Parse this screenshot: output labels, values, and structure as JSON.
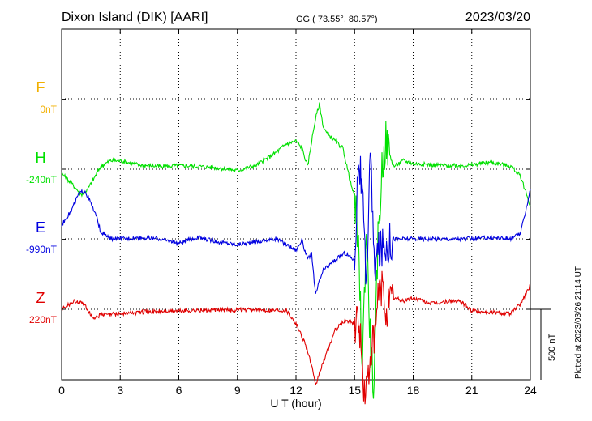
{
  "header": {
    "station": "Dixon Island (DIK)  [AARI]",
    "coords": "GG ( 73.55°,  80.57°)",
    "date": "2023/03/20"
  },
  "footer": {
    "plotted": "Plotted at 2023/03/26 21:14 UT",
    "scale_label": "500 nT"
  },
  "colors": {
    "F": "#f2b000",
    "H": "#00e000",
    "E": "#0000e0",
    "Z": "#e00000"
  },
  "chart_data": {
    "type": "line",
    "title": "Dixon Island (DIK)  [AARI]",
    "xlabel": "U T (hour)",
    "ylabel": "",
    "xlim": [
      0,
      24
    ],
    "x_ticks": [
      0,
      3,
      6,
      9,
      12,
      15,
      18,
      21,
      24
    ],
    "grid": true,
    "scale_bar_nT": 500,
    "series": [
      {
        "name": "F",
        "baseline": "0nT",
        "baseline_value": 0,
        "values": []
      },
      {
        "name": "H",
        "baseline": "-240nT",
        "baseline_value": -240,
        "x": [
          0,
          0.5,
          1,
          1.3,
          1.6,
          2,
          2.5,
          3,
          4,
          5,
          6,
          7,
          8,
          9,
          10,
          11,
          11.5,
          12,
          12.3,
          12.6,
          12.8,
          13,
          13.2,
          13.4,
          13.6,
          14,
          14.4,
          14.8,
          15,
          15.2,
          15.4,
          15.6,
          15.8,
          16,
          16.2,
          16.4,
          16.6,
          16.8,
          17,
          17.5,
          18,
          19,
          20,
          21,
          22,
          23,
          23.5,
          24
        ],
        "values": [
          -30,
          -100,
          -180,
          -150,
          -80,
          20,
          60,
          60,
          30,
          20,
          25,
          20,
          10,
          -10,
          30,
          120,
          180,
          200,
          150,
          20,
          200,
          360,
          460,
          300,
          250,
          200,
          150,
          -100,
          -200,
          -600,
          -1400,
          -400,
          -1200,
          -1600,
          -500,
          0,
          200,
          100,
          20,
          60,
          40,
          30,
          25,
          30,
          50,
          20,
          -50,
          -260
        ]
      },
      {
        "name": "E",
        "baseline": "-990nT",
        "baseline_value": -990,
        "x": [
          0,
          0.5,
          0.8,
          1,
          1.2,
          1.5,
          1.8,
          2,
          2.5,
          3,
          4,
          5,
          6,
          7,
          8,
          9,
          10,
          11,
          11.5,
          12,
          12.3,
          12.6,
          12.8,
          13,
          13.2,
          13.4,
          13.6,
          14,
          14.5,
          15,
          15.2,
          15.4,
          15.6,
          15.8,
          16,
          16.2,
          16.5,
          17,
          18,
          19,
          20,
          21,
          22,
          23,
          23.5,
          24
        ],
        "values": [
          100,
          200,
          300,
          330,
          340,
          250,
          150,
          50,
          0,
          0,
          10,
          0,
          -30,
          10,
          -20,
          -40,
          -20,
          0,
          -40,
          -80,
          -10,
          -150,
          -100,
          -400,
          -300,
          -220,
          -200,
          -150,
          -100,
          -150,
          600,
          300,
          -400,
          700,
          -200,
          -100,
          -50,
          0,
          0,
          0,
          0,
          0,
          10,
          0,
          40,
          350
        ]
      },
      {
        "name": "Z",
        "baseline": "220nT",
        "baseline_value": 220,
        "x": [
          0,
          0.7,
          1.2,
          1.6,
          2,
          3,
          4,
          6,
          8,
          10,
          11.5,
          12,
          12.5,
          12.8,
          13,
          13.2,
          13.6,
          14,
          14.5,
          15,
          15.2,
          15.5,
          15.7,
          15.9,
          16,
          16.2,
          16.4,
          16.6,
          17,
          17.5,
          18,
          19,
          20,
          20.5,
          21,
          22,
          23,
          23.5,
          24
        ],
        "values": [
          0,
          60,
          30,
          -60,
          -40,
          -30,
          -20,
          -10,
          -5,
          -5,
          -5,
          -100,
          -250,
          -400,
          -550,
          -450,
          -300,
          -150,
          -80,
          -100,
          -50,
          -600,
          -500,
          -200,
          -300,
          100,
          150,
          0,
          80,
          60,
          80,
          40,
          60,
          50,
          -10,
          -20,
          -30,
          40,
          170
        ]
      }
    ]
  }
}
